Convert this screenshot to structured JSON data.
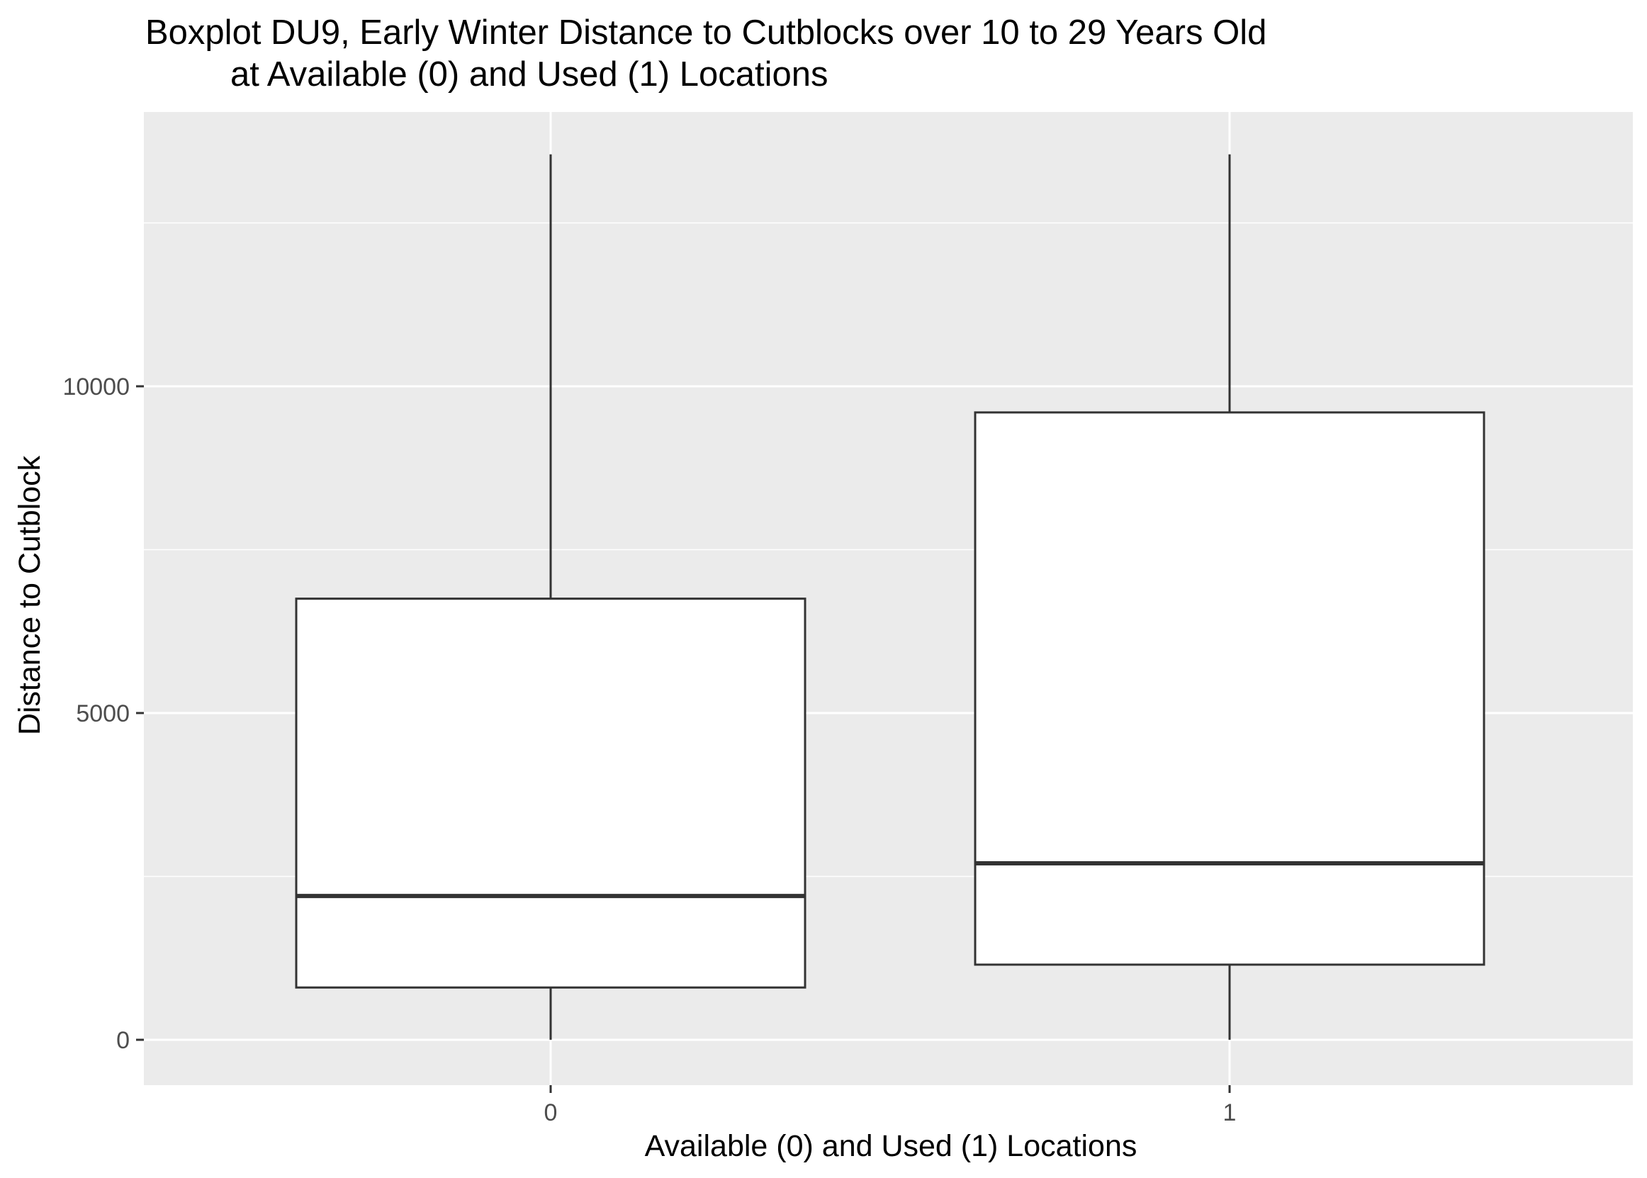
{
  "chart_data": {
    "type": "boxplot",
    "title": "Boxplot DU9, Early Winter Distance to Cutblocks over 10 to 29 Years Old",
    "subtitle": "at Available (0) and Used (1) Locations",
    "xlabel": "Available (0) and Used (1) Locations",
    "ylabel": "Distance to Cutblock",
    "categories": [
      "0",
      "1"
    ],
    "boxes": [
      {
        "category": "0",
        "min": 0,
        "q1": 800,
        "median": 2200,
        "q3": 6750,
        "max": 13550
      },
      {
        "category": "1",
        "min": 0,
        "q1": 1150,
        "median": 2700,
        "q3": 9600,
        "max": 13550
      }
    ],
    "y_ticks": [
      0,
      5000,
      10000
    ],
    "y_tick_labels": [
      "0",
      "5000",
      "10000"
    ],
    "ylim": [
      -680,
      14200
    ],
    "grid": true,
    "legend": "none",
    "colors": {
      "panel_background": "#ebebeb",
      "grid_major": "#ffffff",
      "box_fill": "#ffffff",
      "box_stroke": "#333333",
      "tick_text": "#4d4d4d",
      "tick_mark": "#333333",
      "text": "#000000"
    }
  }
}
